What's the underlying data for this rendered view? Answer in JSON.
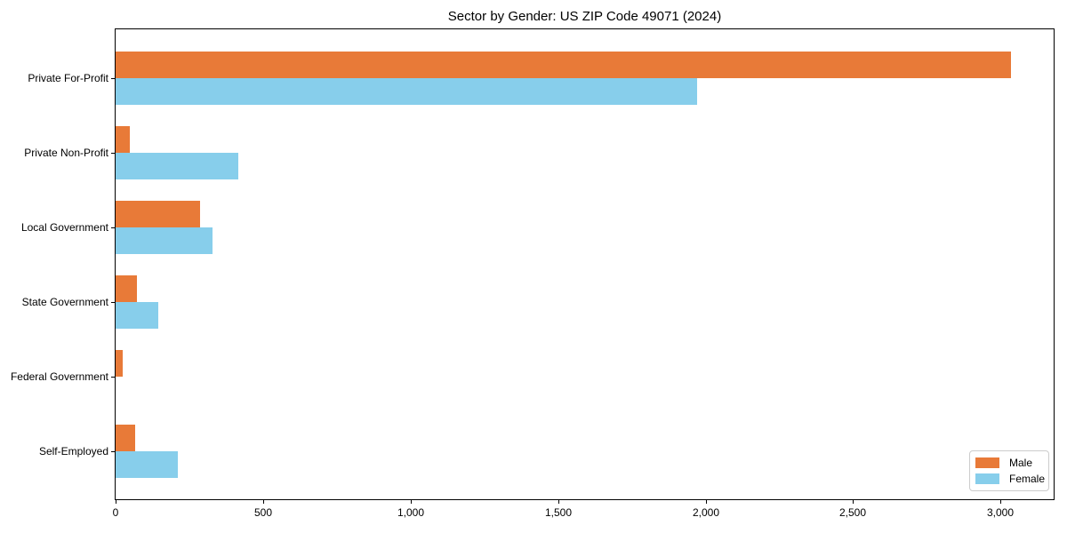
{
  "chart_data": {
    "type": "bar",
    "orientation": "horizontal",
    "title": "Sector by Gender: US ZIP Code 49071 (2024)",
    "categories": [
      "Private For-Profit",
      "Private Non-Profit",
      "Local Government",
      "State Government",
      "Federal Government",
      "Self-Employed"
    ],
    "series": [
      {
        "name": "Male",
        "color": "#e87a38",
        "values": [
          3035,
          48,
          285,
          73,
          23,
          65
        ]
      },
      {
        "name": "Female",
        "color": "#87ceeb",
        "values": [
          1970,
          415,
          330,
          145,
          0,
          210
        ]
      }
    ],
    "xlabel": "",
    "ylabel": "",
    "xlim": [
      0,
      3180
    ],
    "xticks": {
      "values": [
        0,
        500,
        1000,
        1500,
        2000,
        2500,
        3000
      ],
      "labels": [
        "0",
        "500",
        "1,000",
        "1,500",
        "2,000",
        "2,500",
        "3,000"
      ]
    },
    "grid": false,
    "legend": {
      "position": "lower right",
      "entries": [
        "Male",
        "Female"
      ]
    }
  },
  "colors": {
    "axis": "#000000",
    "background": "#ffffff",
    "legend_border": "#cccccc",
    "text": "#000000"
  }
}
